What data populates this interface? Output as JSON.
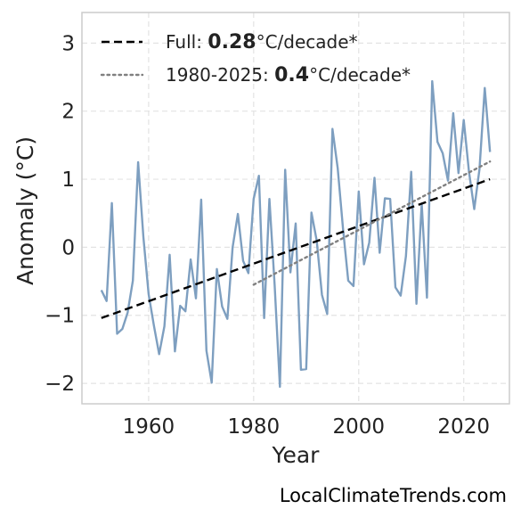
{
  "chart_data": {
    "type": "line",
    "xlabel": "Year",
    "ylabel": "Anomaly (°C)",
    "xlim": [
      1947.3,
      2028.7
    ],
    "ylim": [
      -2.3,
      3.45
    ],
    "xticks": [
      1960,
      1980,
      2000,
      2020
    ],
    "yticks": [
      -2,
      -1,
      0,
      1,
      2,
      3
    ],
    "xtick_labels": [
      "1960",
      "1980",
      "2000",
      "2020"
    ],
    "ytick_labels": [
      "−2",
      "−1",
      "0",
      "1",
      "2",
      "3"
    ],
    "grid": true,
    "legend_position": "top-left",
    "series": [
      {
        "color": "#7e9fc0",
        "x": [
          1951,
          1952,
          1953,
          1954,
          1955,
          1956,
          1957,
          1958,
          1959,
          1960,
          1961,
          1962,
          1963,
          1964,
          1965,
          1966,
          1967,
          1968,
          1969,
          1970,
          1971,
          1972,
          1973,
          1974,
          1975,
          1976,
          1977,
          1978,
          1979,
          1980,
          1981,
          1982,
          1983,
          1984,
          1985,
          1986,
          1987,
          1988,
          1989,
          1990,
          1991,
          1992,
          1993,
          1994,
          1995,
          1996,
          1997,
          1998,
          1999,
          2000,
          2001,
          2002,
          2003,
          2004,
          2005,
          2006,
          2007,
          2008,
          2009,
          2010,
          2011,
          2012,
          2013,
          2014,
          2015,
          2016,
          2017,
          2018,
          2019,
          2020,
          2021,
          2022,
          2023,
          2024,
          2025
        ],
        "y": [
          -0.63,
          -0.79,
          0.65,
          -1.27,
          -1.2,
          -0.96,
          -0.49,
          1.25,
          0.15,
          -0.69,
          -1.15,
          -1.57,
          -1.16,
          -0.11,
          -1.53,
          -0.86,
          -0.94,
          -0.18,
          -0.75,
          0.7,
          -1.52,
          -1.99,
          -0.32,
          -0.87,
          -1.05,
          0.0,
          0.49,
          -0.2,
          -0.38,
          0.71,
          1.05,
          -1.04,
          0.71,
          -0.56,
          -2.05,
          1.14,
          -0.37,
          0.35,
          -1.8,
          -1.79,
          0.51,
          0.1,
          -0.7,
          -0.98,
          1.74,
          1.16,
          0.28,
          -0.49,
          -0.57,
          0.82,
          -0.25,
          0.07,
          1.02,
          -0.08,
          0.72,
          0.71,
          -0.59,
          -0.71,
          -0.13,
          1.11,
          -0.83,
          0.64,
          -0.74,
          2.44,
          1.55,
          1.38,
          0.98,
          1.97,
          1.09,
          1.87,
          1.11,
          0.56,
          1.15,
          2.34,
          1.4
        ]
      }
    ],
    "trends": [
      {
        "style": "dashed",
        "color": "#000000",
        "x": [
          1951,
          2025
        ],
        "y": [
          -1.04,
          1.0
        ]
      },
      {
        "style": "dotted",
        "color": "#808080",
        "x": [
          1980,
          2025
        ],
        "y": [
          -0.55,
          1.26
        ]
      }
    ],
    "legend": [
      {
        "style": "dashed",
        "color": "#000000",
        "prefix": "Full: ",
        "value": "0.28",
        "suffix": "°C/decade*"
      },
      {
        "style": "dotted",
        "color": "#808080",
        "prefix": "1980-2025: ",
        "value": "0.4",
        "suffix": "°C/decade*"
      }
    ]
  },
  "credit": "LocalClimateTrends.com"
}
